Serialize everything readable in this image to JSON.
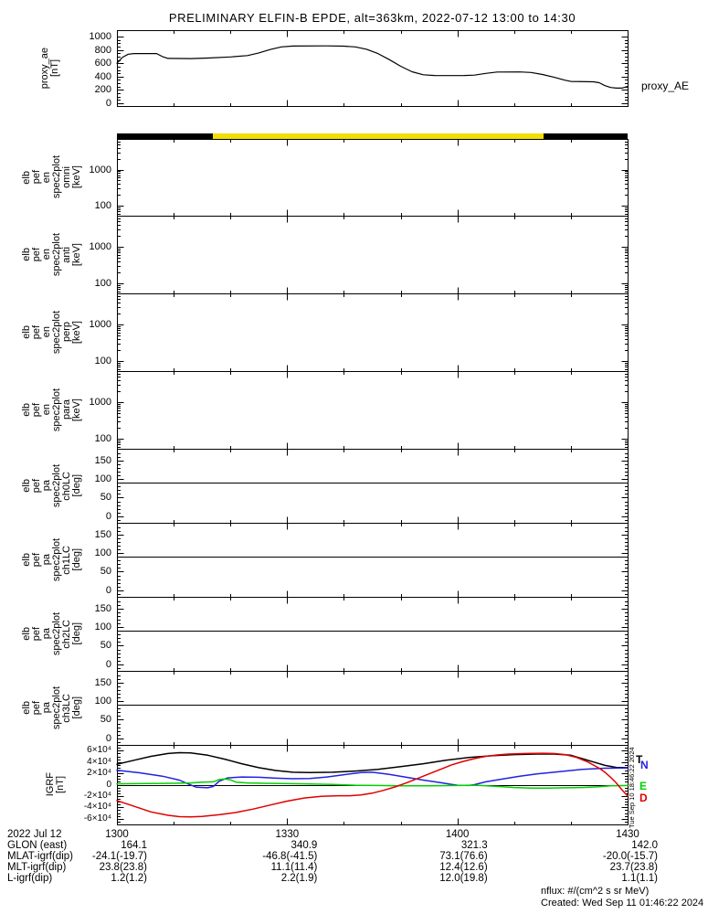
{
  "title": "PRELIMINARY ELFIN-B EPDE, alt=363km, 2022-07-12 13:00 to 14:30",
  "colors": {
    "background": "#ffffff",
    "frame": "#000000",
    "bar_black": "#000000",
    "bar_yellow": "#f0df00",
    "igrf_T": "#000000",
    "igrf_N": "#2222e0",
    "igrf_E": "#00d000",
    "igrf_D": "#e00000"
  },
  "proxy_panel": {
    "ylabel_lines": [
      "proxy_ae",
      "[nT]"
    ],
    "right_label": "proxy_AE",
    "ytick_labels": [
      "0",
      "200",
      "400",
      "600",
      "800",
      "1000"
    ]
  },
  "quality_bar": {
    "segments": [
      {
        "color_key": "bar_black",
        "t_start": 0,
        "t_end": 16.9
      },
      {
        "color_key": "bar_yellow",
        "t_start": 16.9,
        "t_end": 75.2
      },
      {
        "color_key": "bar_black",
        "t_start": 75.2,
        "t_end": 90
      }
    ]
  },
  "spec_panels": [
    {
      "ylabel_lines": [
        "elb",
        "pef",
        "en",
        "spec2plot",
        "omni",
        "[keV]"
      ],
      "ytick_labels": [
        "100",
        "1000"
      ]
    },
    {
      "ylabel_lines": [
        "elb",
        "pef",
        "en",
        "spec2plot",
        "anti",
        "[keV]"
      ],
      "ytick_labels": [
        "100",
        "1000"
      ]
    },
    {
      "ylabel_lines": [
        "elb",
        "pef",
        "en",
        "spec2plot",
        "perp",
        "[keV]"
      ],
      "ytick_labels": [
        "100",
        "1000"
      ]
    },
    {
      "ylabel_lines": [
        "elb",
        "pef",
        "en",
        "spec2plot",
        "para",
        "[keV]"
      ],
      "ytick_labels": [
        "100",
        "1000"
      ]
    }
  ],
  "pa_panels": [
    {
      "ylabel_lines": [
        "elb",
        "pef",
        "pa",
        "spec2plot",
        "ch0LC",
        "[deg]"
      ],
      "ytick_labels": [
        "0",
        "50",
        "100",
        "150"
      ]
    },
    {
      "ylabel_lines": [
        "elb",
        "pef",
        "pa",
        "spec2plot",
        "ch1LC",
        "[deg]"
      ],
      "ytick_labels": [
        "0",
        "50",
        "100",
        "150"
      ]
    },
    {
      "ylabel_lines": [
        "elb",
        "pef",
        "pa",
        "spec2plot",
        "ch2LC",
        "[deg]"
      ],
      "ytick_labels": [
        "0",
        "50",
        "100",
        "150"
      ]
    },
    {
      "ylabel_lines": [
        "elb",
        "pef",
        "pa",
        "spec2plot",
        "ch3LC",
        "[deg]"
      ],
      "ytick_labels": [
        "0",
        "50",
        "100",
        "150"
      ]
    }
  ],
  "igrf_panel": {
    "ylabel_lines": [
      "IGRF",
      "[nT]"
    ],
    "ytick_labels": [
      "-6×10⁴",
      "-4×10⁴",
      "-2×10⁴",
      "0",
      "2×10⁴",
      "4×10⁴",
      "6×10⁴"
    ],
    "legend": [
      {
        "label": "T",
        "color_key": "igrf_T"
      },
      {
        "label": "N",
        "color_key": "igrf_N"
      },
      {
        "label": "E",
        "color_key": "igrf_E"
      },
      {
        "label": "D",
        "color_key": "igrf_D"
      }
    ]
  },
  "time_axis": {
    "tick_labels": [
      "1300",
      "1330",
      "1400",
      "1430"
    ],
    "tick_minutes": [
      0,
      30,
      60,
      90
    ],
    "minor_step_minutes": 10
  },
  "footer": {
    "date_label": "2022 Jul 12",
    "rows": [
      {
        "label": "GLON (east)",
        "values": [
          "164.1",
          "340.9",
          "321.3",
          "142.0"
        ]
      },
      {
        "label": "MLAT-igrf(dip)",
        "values": [
          "-24.1(-19.7)",
          "-46.8(-41.5)",
          "73.1(76.6)",
          "-20.0(-15.7)"
        ]
      },
      {
        "label": "MLT-igrf(dip)",
        "values": [
          "23.8(23.8)",
          "11.1(11.4)",
          "12.4(12.6)",
          "23.7(23.8)"
        ]
      },
      {
        "label": "L-igrf(dip)",
        "values": [
          "1.2(1.2)",
          "2.2(1.9)",
          "12.0(19.8)",
          "1.1(1.1)"
        ]
      }
    ],
    "nflux_note": "nflux: #/(cm^2 s sr MeV)",
    "created": "Created: Wed Sep 11 01:46:22 2024",
    "side_timestamp": "Tue Sep 10 18:46:22 2024"
  },
  "chart_data": [
    {
      "type": "line",
      "name": "proxy_AE",
      "ylabel": "proxy_ae [nT]",
      "ylim": [
        0,
        1000
      ],
      "x_unit": "minutes after 2022-07-12 13:00 UT",
      "points": [
        [
          0,
          600
        ],
        [
          1,
          690
        ],
        [
          2,
          735
        ],
        [
          3,
          745
        ],
        [
          7,
          745
        ],
        [
          8,
          700
        ],
        [
          9,
          672
        ],
        [
          13,
          670
        ],
        [
          16,
          678
        ],
        [
          20,
          695
        ],
        [
          23,
          715
        ],
        [
          25,
          755
        ],
        [
          27,
          805
        ],
        [
          29,
          845
        ],
        [
          31,
          858
        ],
        [
          37,
          860
        ],
        [
          40,
          856
        ],
        [
          42,
          845
        ],
        [
          44,
          810
        ],
        [
          46,
          745
        ],
        [
          48,
          655
        ],
        [
          50,
          555
        ],
        [
          52,
          472
        ],
        [
          54,
          428
        ],
        [
          56,
          417
        ],
        [
          61,
          415
        ],
        [
          63,
          422
        ],
        [
          65,
          448
        ],
        [
          67,
          468
        ],
        [
          71,
          470
        ],
        [
          73,
          462
        ],
        [
          75,
          432
        ],
        [
          77,
          392
        ],
        [
          79,
          345
        ],
        [
          80,
          328
        ],
        [
          84,
          322
        ],
        [
          85,
          308
        ],
        [
          86,
          265
        ],
        [
          87,
          237
        ],
        [
          88,
          228
        ],
        [
          89,
          227
        ],
        [
          90,
          252
        ]
      ]
    },
    {
      "type": "spectrogram",
      "name": "elb_pef_en_spec2plot (omni, anti, perp, para)",
      "ylabel": "[keV]",
      "yscale": "log",
      "ylim": [
        55,
        7000
      ],
      "note": "panels are blank (no flux data plotted)"
    },
    {
      "type": "spectrogram",
      "name": "elb_pef_pa_spec2plot (ch0LC, ch1LC, ch2LC, ch3LC)",
      "ylabel": "[deg]",
      "ylim": [
        0,
        180
      ],
      "note": "panels blank except horizontal 90 deg reference line"
    },
    {
      "type": "line",
      "name": "IGRF",
      "ylabel": "IGRF [nT]",
      "ylim": [
        -60000,
        60000
      ],
      "x_unit": "minutes after 2022-07-12 13:00 UT",
      "series": [
        {
          "name": "T",
          "color_key": "igrf_T",
          "points": [
            [
              0,
              36000
            ],
            [
              3,
              43000
            ],
            [
              6,
              50000
            ],
            [
              9,
              55000
            ],
            [
              11,
              56500
            ],
            [
              13,
              56000
            ],
            [
              16,
              52000
            ],
            [
              19,
              45000
            ],
            [
              22,
              37000
            ],
            [
              25,
              30000
            ],
            [
              28,
              25000
            ],
            [
              31,
              22000
            ],
            [
              34,
              21500
            ],
            [
              38,
              22000
            ],
            [
              42,
              24000
            ],
            [
              46,
              27000
            ],
            [
              50,
              32000
            ],
            [
              54,
              37000
            ],
            [
              58,
              43000
            ],
            [
              62,
              48000
            ],
            [
              66,
              51000
            ],
            [
              70,
              53000
            ],
            [
              74,
              54000
            ],
            [
              77,
              54000
            ],
            [
              80,
              52000
            ],
            [
              82,
              46000
            ],
            [
              84,
              40000
            ],
            [
              86,
              34000
            ],
            [
              88,
              30500
            ],
            [
              90,
              30000
            ]
          ]
        },
        {
          "name": "N",
          "color_key": "igrf_N",
          "points": [
            [
              0,
              25500
            ],
            [
              4,
              21000
            ],
            [
              8,
              15000
            ],
            [
              11,
              8000
            ],
            [
              12.5,
              1500
            ],
            [
              14,
              -4500
            ],
            [
              16,
              -5500
            ],
            [
              17,
              -3000
            ],
            [
              18,
              6000
            ],
            [
              19.5,
              12000
            ],
            [
              22,
              13500
            ],
            [
              25,
              13000
            ],
            [
              28,
              11500
            ],
            [
              31,
              10500
            ],
            [
              34,
              11000
            ],
            [
              37,
              13500
            ],
            [
              40,
              17500
            ],
            [
              43,
              21500
            ],
            [
              45,
              22000
            ],
            [
              48,
              18000
            ],
            [
              51,
              13000
            ],
            [
              54,
              8000
            ],
            [
              57,
              3500
            ],
            [
              59,
              500
            ],
            [
              60,
              -1000
            ],
            [
              62,
              -1500
            ],
            [
              63,
              0
            ],
            [
              65,
              5000
            ],
            [
              68,
              10000
            ],
            [
              71,
              15000
            ],
            [
              74,
              19000
            ],
            [
              78,
              23000
            ],
            [
              82,
              27000
            ],
            [
              86,
              29000
            ],
            [
              90,
              29500
            ]
          ]
        },
        {
          "name": "E",
          "color_key": "igrf_E",
          "points": [
            [
              0,
              1500
            ],
            [
              5,
              2000
            ],
            [
              10,
              2500
            ],
            [
              13,
              3000
            ],
            [
              15,
              4500
            ],
            [
              17,
              5000
            ],
            [
              18,
              9000
            ],
            [
              19,
              10000
            ],
            [
              20,
              8500
            ],
            [
              21,
              4500
            ],
            [
              23,
              3000
            ],
            [
              26,
              2500
            ],
            [
              29,
              2000
            ],
            [
              33,
              1500
            ],
            [
              38,
              500
            ],
            [
              42,
              -1000
            ],
            [
              46,
              -1500
            ],
            [
              50,
              -2000
            ],
            [
              55,
              -2000
            ],
            [
              60,
              -1500
            ],
            [
              62,
              -1000
            ],
            [
              64,
              -1500
            ],
            [
              67,
              -3000
            ],
            [
              70,
              -5000
            ],
            [
              73,
              -6000
            ],
            [
              76,
              -6000
            ],
            [
              79,
              -5500
            ],
            [
              82,
              -5000
            ],
            [
              85,
              -3500
            ],
            [
              87,
              -2000
            ],
            [
              90,
              -1500
            ]
          ]
        },
        {
          "name": "D",
          "color_key": "igrf_D",
          "points": [
            [
              0,
              -28000
            ],
            [
              3,
              -38000
            ],
            [
              6,
              -48000
            ],
            [
              9,
              -54000
            ],
            [
              11,
              -56500
            ],
            [
              13,
              -57000
            ],
            [
              15,
              -56000
            ],
            [
              18,
              -53000
            ],
            [
              21,
              -49000
            ],
            [
              24,
              -43000
            ],
            [
              27,
              -36000
            ],
            [
              30,
              -29000
            ],
            [
              33,
              -23500
            ],
            [
              36,
              -20500
            ],
            [
              39,
              -19500
            ],
            [
              41,
              -19500
            ],
            [
              43,
              -18000
            ],
            [
              45,
              -15000
            ],
            [
              47,
              -10000
            ],
            [
              49,
              -4000
            ],
            [
              51,
              3000
            ],
            [
              53,
              11000
            ],
            [
              55,
              19000
            ],
            [
              57,
              27000
            ],
            [
              59,
              35000
            ],
            [
              61,
              41000
            ],
            [
              63,
              46000
            ],
            [
              65,
              50000
            ],
            [
              67,
              52500
            ],
            [
              69,
              54000
            ],
            [
              72,
              55000
            ],
            [
              75,
              55500
            ],
            [
              77,
              55000
            ],
            [
              79,
              53000
            ],
            [
              81,
              48000
            ],
            [
              83,
              40000
            ],
            [
              85,
              29000
            ],
            [
              86,
              22000
            ],
            [
              87,
              13000
            ],
            [
              88,
              3000
            ],
            [
              89,
              -9000
            ],
            [
              90,
              -20000
            ]
          ]
        }
      ]
    }
  ]
}
